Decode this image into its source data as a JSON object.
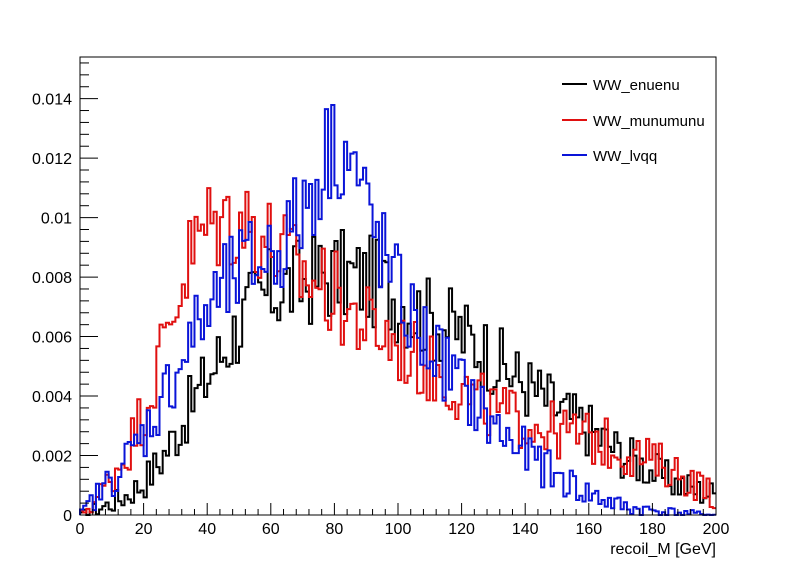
{
  "chart_data": {
    "type": "histogram-step",
    "title": "",
    "xlabel": "recoil_M [GeV]",
    "ylabel": "",
    "xlim": [
      0,
      200
    ],
    "ylim": [
      0,
      0.0154
    ],
    "x_ticks": [
      "0",
      "20",
      "40",
      "60",
      "80",
      "100",
      "120",
      "140",
      "160",
      "180",
      "200"
    ],
    "y_ticks": [
      "0",
      "0.002",
      "0.004",
      "0.006",
      "0.008",
      "0.01",
      "0.012",
      "0.014"
    ],
    "y_tick_values": [
      0,
      0.002,
      0.004,
      0.006,
      0.008,
      0.01,
      0.012,
      0.014
    ],
    "grid": false,
    "legend_position": "top-right",
    "series": [
      {
        "name": "WW_enuenu",
        "color": "#000000",
        "x": [
          0,
          5,
          10,
          15,
          20,
          25,
          30,
          35,
          40,
          45,
          50,
          55,
          60,
          65,
          70,
          75,
          80,
          85,
          90,
          95,
          100,
          105,
          110,
          115,
          120,
          125,
          130,
          135,
          140,
          145,
          150,
          155,
          160,
          165,
          170,
          175,
          180,
          185,
          190,
          195,
          200
        ],
        "y": [
          0.0,
          0.0002,
          0.0004,
          0.0007,
          0.0011,
          0.0018,
          0.0027,
          0.0037,
          0.0046,
          0.0055,
          0.0064,
          0.0071,
          0.0075,
          0.0077,
          0.0078,
          0.008,
          0.0081,
          0.008,
          0.0079,
          0.0077,
          0.0073,
          0.0069,
          0.0066,
          0.0064,
          0.0061,
          0.0057,
          0.0053,
          0.0048,
          0.0044,
          0.004,
          0.0036,
          0.0032,
          0.0029,
          0.0025,
          0.0021,
          0.0018,
          0.0015,
          0.0012,
          0.001,
          0.0008,
          0.0007
        ]
      },
      {
        "name": "WW_munumunu",
        "color": "#e01010",
        "x": [
          0,
          5,
          10,
          15,
          20,
          25,
          30,
          35,
          40,
          45,
          50,
          55,
          60,
          65,
          70,
          75,
          80,
          85,
          90,
          95,
          100,
          105,
          110,
          115,
          120,
          125,
          130,
          135,
          140,
          145,
          150,
          155,
          160,
          165,
          170,
          175,
          180,
          185,
          190,
          195,
          200
        ],
        "y": [
          0.0,
          0.0005,
          0.0013,
          0.0022,
          0.0035,
          0.0052,
          0.0072,
          0.0088,
          0.0097,
          0.0099,
          0.0099,
          0.0097,
          0.0091,
          0.0086,
          0.0081,
          0.0078,
          0.0074,
          0.0068,
          0.0064,
          0.0061,
          0.0057,
          0.0053,
          0.0049,
          0.0046,
          0.0042,
          0.0038,
          0.0035,
          0.0033,
          0.0032,
          0.003,
          0.0028,
          0.0027,
          0.0026,
          0.0024,
          0.0022,
          0.002,
          0.0018,
          0.0016,
          0.0013,
          0.001,
          0.0006
        ]
      },
      {
        "name": "WW_lvqq",
        "color": "#0a14d8",
        "x": [
          0,
          5,
          10,
          15,
          20,
          25,
          30,
          35,
          40,
          45,
          50,
          55,
          60,
          65,
          70,
          75,
          80,
          85,
          90,
          95,
          100,
          105,
          110,
          115,
          120,
          125,
          130,
          135,
          140,
          145,
          150,
          155,
          160,
          165,
          170,
          175,
          180,
          185,
          190,
          195,
          200
        ],
        "y": [
          0.0,
          0.0006,
          0.0012,
          0.0019,
          0.0027,
          0.0037,
          0.0048,
          0.0059,
          0.0068,
          0.0075,
          0.0081,
          0.0085,
          0.0088,
          0.0093,
          0.0102,
          0.0115,
          0.0126,
          0.012,
          0.0103,
          0.0088,
          0.0075,
          0.0064,
          0.0057,
          0.005,
          0.0043,
          0.0036,
          0.003,
          0.0025,
          0.0021,
          0.0017,
          0.0013,
          0.001,
          0.0007,
          0.0005,
          0.0003,
          0.0002,
          0.00015,
          0.0001,
          6e-05,
          3e-05,
          0.0
        ]
      }
    ]
  }
}
